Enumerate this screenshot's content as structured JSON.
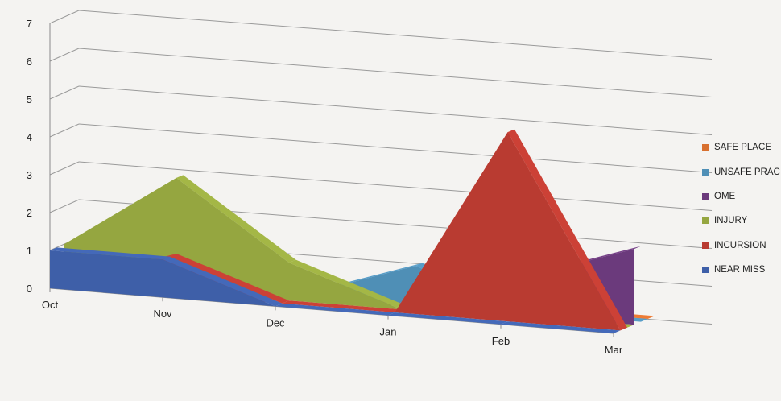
{
  "chart_data": {
    "type": "area",
    "title": "",
    "xlabel": "",
    "ylabel": "",
    "categories": [
      "Oct",
      "Nov",
      "Dec",
      "Jan",
      "Feb",
      "Mar"
    ],
    "ylim": [
      0,
      7
    ],
    "yticks": [
      "0",
      "1",
      "2",
      "3",
      "4",
      "5",
      "6",
      "7"
    ],
    "grid": true,
    "legend_position": "right",
    "series": [
      {
        "name": "NEAR MISS",
        "color": "#3e5fa8",
        "values": [
          1,
          1,
          0,
          0,
          0,
          0
        ]
      },
      {
        "name": "INCURSION",
        "color": "#b93b31",
        "values": [
          0,
          1,
          0,
          0,
          5,
          0
        ]
      },
      {
        "name": "INJURY",
        "color": "#95a640",
        "values": [
          1,
          3,
          1,
          0,
          0,
          0
        ]
      },
      {
        "name": "OME",
        "color": "#6b3a7c",
        "values": [
          1,
          0,
          0,
          0,
          1,
          2
        ]
      },
      {
        "name": "UNSAFE PRAC",
        "color": "#4f8fb6",
        "values": [
          0,
          0,
          0,
          1,
          0,
          0
        ]
      },
      {
        "name": "SAFE PLACE",
        "color": "#d8702f",
        "values": [
          0,
          0,
          0,
          0,
          0,
          0
        ]
      }
    ]
  }
}
